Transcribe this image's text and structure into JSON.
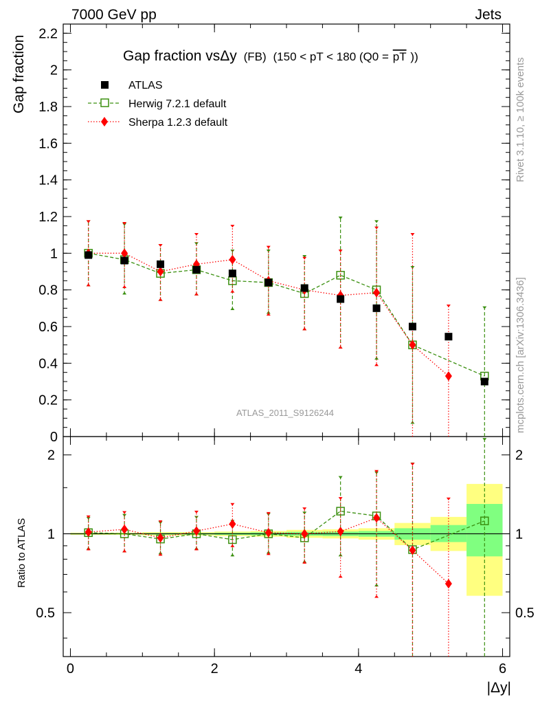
{
  "header": {
    "left": "7000 GeV pp",
    "right": "Jets"
  },
  "side_text": {
    "rivet": "Rivet 3.1.10, ≥ 100k events",
    "mcplots": "mcplots.cern.ch [arXiv:1306.3436]"
  },
  "analysis_label": "ATLAS_2011_S9126244",
  "title": {
    "main": "Gap fraction vsΔy",
    "fb": "(FB)",
    "range": "(150 < pT < 180 (Q0 =",
    "q0": "pT",
    "close": "))"
  },
  "colors": {
    "atlas": "#000000",
    "herwig": "#3a8f0f",
    "sherpa": "#ff0000",
    "band_outer": "#ffff80",
    "band_inner": "#80ff80"
  },
  "chart_data": [
    {
      "type": "scatter",
      "panel": "main",
      "ylabel": "Gap fraction",
      "xlabel": "|Δy|",
      "xlim": [
        -0.1,
        6.1
      ],
      "ylim": [
        0,
        2.25
      ],
      "yticks": [
        0,
        0.2,
        0.4,
        0.6,
        0.8,
        1,
        1.2,
        1.4,
        1.6,
        1.8,
        2,
        2.2
      ],
      "ytick_labels": [
        "0",
        "0.2",
        "0.4",
        "0.6",
        "0.8",
        "1",
        "1.2",
        "1.4",
        "1.6",
        "1.8",
        "2",
        "2.2"
      ],
      "x": [
        0.25,
        0.75,
        1.25,
        1.75,
        2.25,
        2.75,
        3.25,
        3.75,
        4.25,
        4.75,
        5.25,
        5.75
      ],
      "series": [
        {
          "name": "ATLAS",
          "marker": "square",
          "values": [
            0.99,
            0.96,
            0.94,
            0.91,
            0.89,
            0.84,
            0.81,
            0.75,
            0.7,
            0.6,
            0.545,
            0.3
          ],
          "err_lo": [
            0.01,
            0.01,
            0.01,
            0.01,
            0.01,
            0.01,
            0.01,
            0.01,
            0.01,
            0.01,
            0.01,
            0.01
          ],
          "err_hi": [
            0.01,
            0.01,
            0.01,
            0.01,
            0.01,
            0.01,
            0.01,
            0.01,
            0.01,
            0.01,
            0.01,
            0.01
          ]
        },
        {
          "name": "Herwig 7.2.1 default",
          "marker": "open-square",
          "line": "dashed",
          "values": [
            1.0,
            0.965,
            0.89,
            0.91,
            0.85,
            0.84,
            0.78,
            0.88,
            0.8,
            0.5,
            null,
            0.33
          ],
          "err_lo": [
            0.18,
            0.19,
            0.15,
            0.14,
            0.16,
            0.17,
            0.2,
            0.4,
            0.38,
            0.43,
            null,
            0.33
          ],
          "err_hi": [
            0.18,
            0.2,
            0.16,
            0.15,
            0.17,
            0.18,
            0.21,
            0.32,
            0.38,
            0.43,
            null,
            0.38
          ]
        },
        {
          "name": "Sherpa 1.2.3 default",
          "marker": "diamond",
          "line": "dotted",
          "values": [
            1.0,
            1.0,
            0.9,
            0.94,
            0.965,
            0.85,
            0.8,
            0.77,
            0.785,
            0.5,
            0.33,
            null
          ],
          "err_lo": [
            0.18,
            0.19,
            0.16,
            0.17,
            0.18,
            0.19,
            0.22,
            0.29,
            0.4,
            0.5,
            0.33,
            null
          ],
          "err_hi": [
            0.18,
            0.17,
            0.15,
            0.17,
            0.19,
            0.19,
            0.18,
            0.25,
            0.36,
            0.61,
            0.39,
            null
          ]
        }
      ]
    },
    {
      "type": "scatter",
      "panel": "ratio",
      "ylabel": "Ratio to ATLAS",
      "xlabel": "|Δy|",
      "xlim": [
        -0.1,
        6.1
      ],
      "ylim": [
        0.34,
        2.35
      ],
      "log_y": true,
      "yticks": [
        0.5,
        1,
        2
      ],
      "ytick_labels": [
        "0.5",
        "1",
        "2"
      ],
      "xticks": [
        0,
        2,
        4,
        6
      ],
      "xtick_labels": [
        "0",
        "2",
        "4",
        "6"
      ],
      "x": [
        0.25,
        0.75,
        1.25,
        1.75,
        2.25,
        2.75,
        3.25,
        3.75,
        4.25,
        4.75,
        5.25,
        5.75
      ],
      "bands": [
        {
          "x0": 0.0,
          "x1": 0.5,
          "outer": [
            0.99,
            1.01
          ],
          "inner": [
            0.995,
            1.005
          ]
        },
        {
          "x0": 0.5,
          "x1": 1.0,
          "outer": [
            0.99,
            1.01
          ],
          "inner": [
            0.995,
            1.005
          ]
        },
        {
          "x0": 1.0,
          "x1": 1.5,
          "outer": [
            0.985,
            1.015
          ],
          "inner": [
            0.993,
            1.007
          ]
        },
        {
          "x0": 1.5,
          "x1": 2.0,
          "outer": [
            0.985,
            1.015
          ],
          "inner": [
            0.993,
            1.007
          ]
        },
        {
          "x0": 2.0,
          "x1": 2.5,
          "outer": [
            0.98,
            1.02
          ],
          "inner": [
            0.99,
            1.01
          ]
        },
        {
          "x0": 2.5,
          "x1": 3.0,
          "outer": [
            0.975,
            1.025
          ],
          "inner": [
            0.987,
            1.013
          ]
        },
        {
          "x0": 3.0,
          "x1": 3.5,
          "outer": [
            0.965,
            1.035
          ],
          "inner": [
            0.983,
            1.017
          ]
        },
        {
          "x0": 3.5,
          "x1": 4.0,
          "outer": [
            0.96,
            1.04
          ],
          "inner": [
            0.98,
            1.02
          ]
        },
        {
          "x0": 4.0,
          "x1": 4.5,
          "outer": [
            0.95,
            1.05
          ],
          "inner": [
            0.975,
            1.025
          ]
        },
        {
          "x0": 4.5,
          "x1": 5.0,
          "outer": [
            0.905,
            1.1
          ],
          "inner": [
            0.95,
            1.05
          ]
        },
        {
          "x0": 5.0,
          "x1": 5.5,
          "outer": [
            0.86,
            1.16
          ],
          "inner": [
            0.93,
            1.08
          ]
        },
        {
          "x0": 5.5,
          "x1": 6.0,
          "outer": [
            0.58,
            1.55
          ],
          "inner": [
            0.82,
            1.3
          ]
        }
      ],
      "series": [
        {
          "name": "Herwig 7.2.1 default",
          "marker": "open-square",
          "line": "dashed",
          "values": [
            1.01,
            1.0,
            0.955,
            1.0,
            0.95,
            1.0,
            0.965,
            1.22,
            1.17,
            0.87,
            null,
            1.12
          ],
          "err_lo": [
            0.14,
            0.15,
            0.12,
            0.13,
            0.13,
            0.16,
            0.19,
            0.4,
            0.54,
            0.87,
            null,
            1.12
          ],
          "err_hi": [
            0.15,
            0.19,
            0.16,
            0.17,
            0.18,
            0.2,
            0.25,
            0.44,
            0.56,
            1.0,
            null,
            1.2
          ]
        },
        {
          "name": "Sherpa 1.2.3 default",
          "marker": "diamond",
          "line": "dotted",
          "values": [
            1.015,
            1.04,
            0.965,
            1.025,
            1.09,
            1.01,
            1.0,
            1.02,
            1.15,
            0.865,
            0.645,
            null
          ],
          "err_lo": [
            0.15,
            0.19,
            0.14,
            0.16,
            0.2,
            0.18,
            0.23,
            0.34,
            0.58,
            0.87,
            0.645,
            null
          ],
          "err_hi": [
            0.16,
            0.18,
            0.16,
            0.2,
            0.22,
            0.2,
            0.26,
            0.36,
            0.6,
            1.0,
            0.73,
            null
          ]
        }
      ]
    }
  ]
}
